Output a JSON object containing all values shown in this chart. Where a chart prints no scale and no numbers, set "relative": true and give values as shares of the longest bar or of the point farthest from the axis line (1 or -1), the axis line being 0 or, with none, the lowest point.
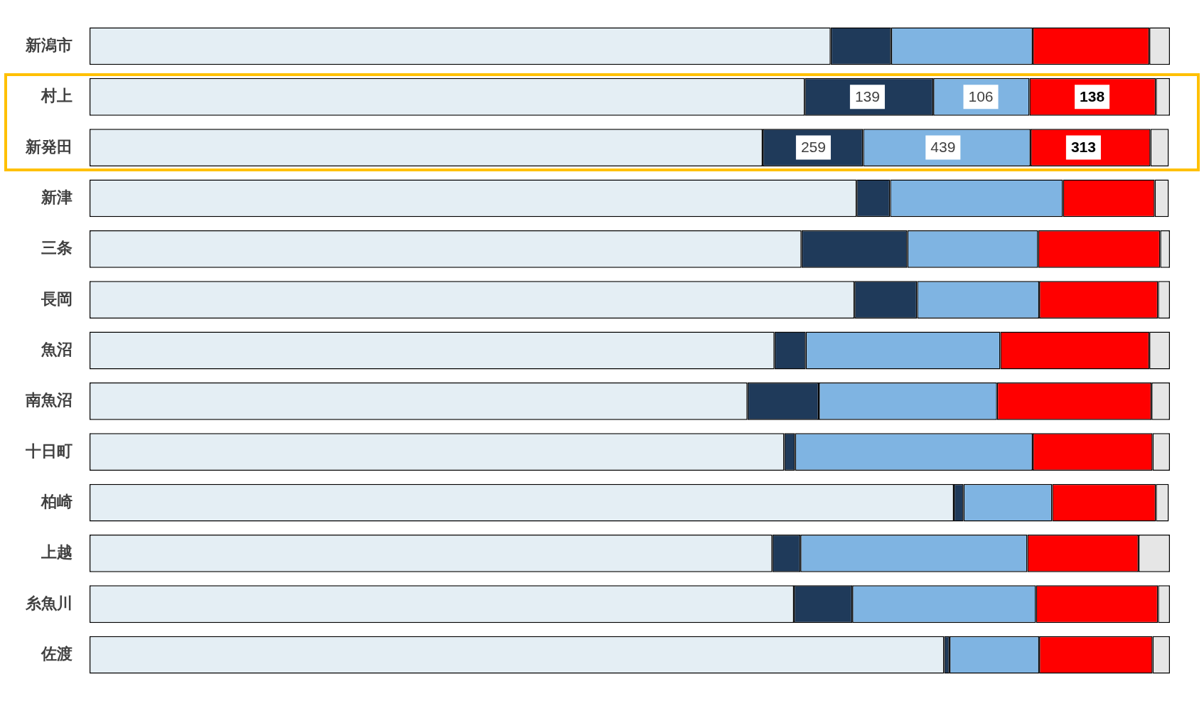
{
  "chart_data": {
    "type": "bar",
    "orientation": "horizontal",
    "stacked": true,
    "relative": true,
    "legend": false,
    "categories": [
      "新潟市",
      "村上",
      "新発田",
      "新津",
      "三条",
      "長岡",
      "魚沼",
      "南魚沼",
      "十日町",
      "柏崎",
      "上越",
      "糸魚川",
      "佐渡"
    ],
    "series": [
      {
        "color": "#e4eef4",
        "values": [
          0.686,
          0.662,
          0.623,
          0.71,
          0.659,
          0.708,
          0.634,
          0.609,
          0.643,
          0.8,
          0.632,
          0.652,
          0.791
        ]
      },
      {
        "color": "#1f3a5a",
        "values": [
          0.056,
          0.119,
          0.093,
          0.031,
          0.098,
          0.058,
          0.029,
          0.066,
          0.01,
          0.009,
          0.026,
          0.054,
          0.005
        ]
      },
      {
        "color": "#7fb4e2",
        "values": [
          0.131,
          0.089,
          0.155,
          0.16,
          0.121,
          0.113,
          0.18,
          0.165,
          0.22,
          0.082,
          0.21,
          0.17,
          0.083
        ]
      },
      {
        "color": "#ff0000",
        "values": [
          0.108,
          0.117,
          0.111,
          0.085,
          0.113,
          0.11,
          0.138,
          0.143,
          0.111,
          0.096,
          0.103,
          0.113,
          0.105
        ]
      },
      {
        "color": "#e6e6e6",
        "values": [
          0.019,
          0.013,
          0.017,
          0.013,
          0.009,
          0.011,
          0.019,
          0.017,
          0.016,
          0.012,
          0.029,
          0.011,
          0.016
        ]
      }
    ],
    "annotations": [
      {
        "text": "139",
        "x": 0.72,
        "y": "村上"
      },
      {
        "text": "106",
        "x": 0.825,
        "y": "村上"
      },
      {
        "text": "138",
        "x": 0.928,
        "y": "村上"
      },
      {
        "text": "259",
        "x": 0.67,
        "y": "新発田"
      },
      {
        "text": "439",
        "x": 0.79,
        "y": "新発田"
      },
      {
        "text": "313",
        "x": 0.92,
        "y": "新発田"
      }
    ]
  }
}
